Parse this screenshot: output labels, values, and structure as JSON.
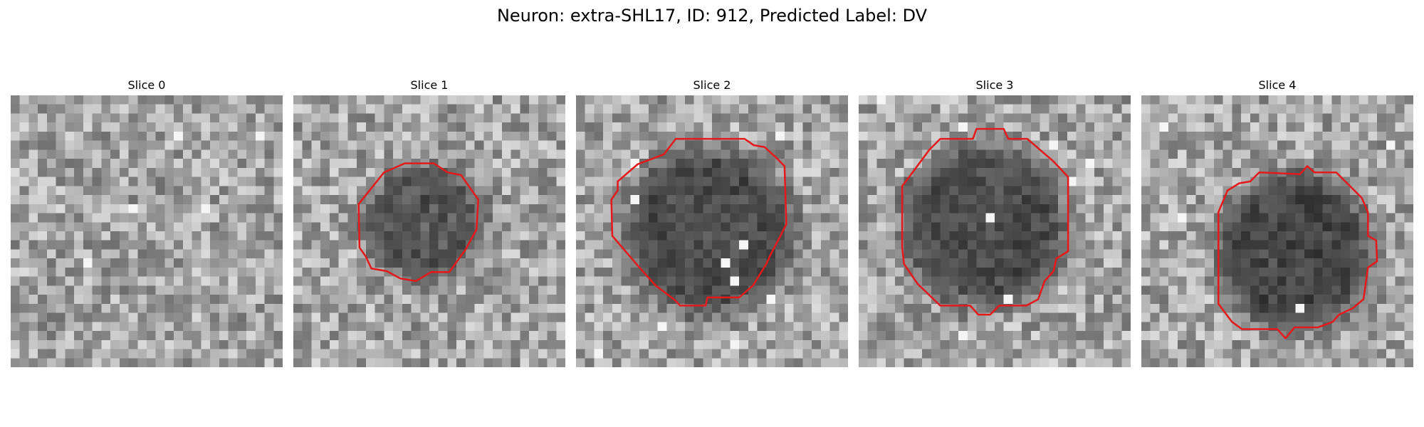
{
  "figure": {
    "title": "Neuron: extra-SHL17, ID: 912, Predicted Label: DV"
  },
  "colors": {
    "contour": "#e31a1c",
    "background": "#ffffff"
  },
  "panels": [
    {
      "title": "Slice 0",
      "has_contour": false,
      "cell_darkness": 0.0
    },
    {
      "title": "Slice 1",
      "has_contour": true,
      "cell_darkness": 0.75
    },
    {
      "title": "Slice 2",
      "has_contour": true,
      "cell_darkness": 0.85
    },
    {
      "title": "Slice 3",
      "has_contour": true,
      "cell_darkness": 0.85
    },
    {
      "title": "Slice 4",
      "has_contour": true,
      "cell_darkness": 0.9
    }
  ]
}
